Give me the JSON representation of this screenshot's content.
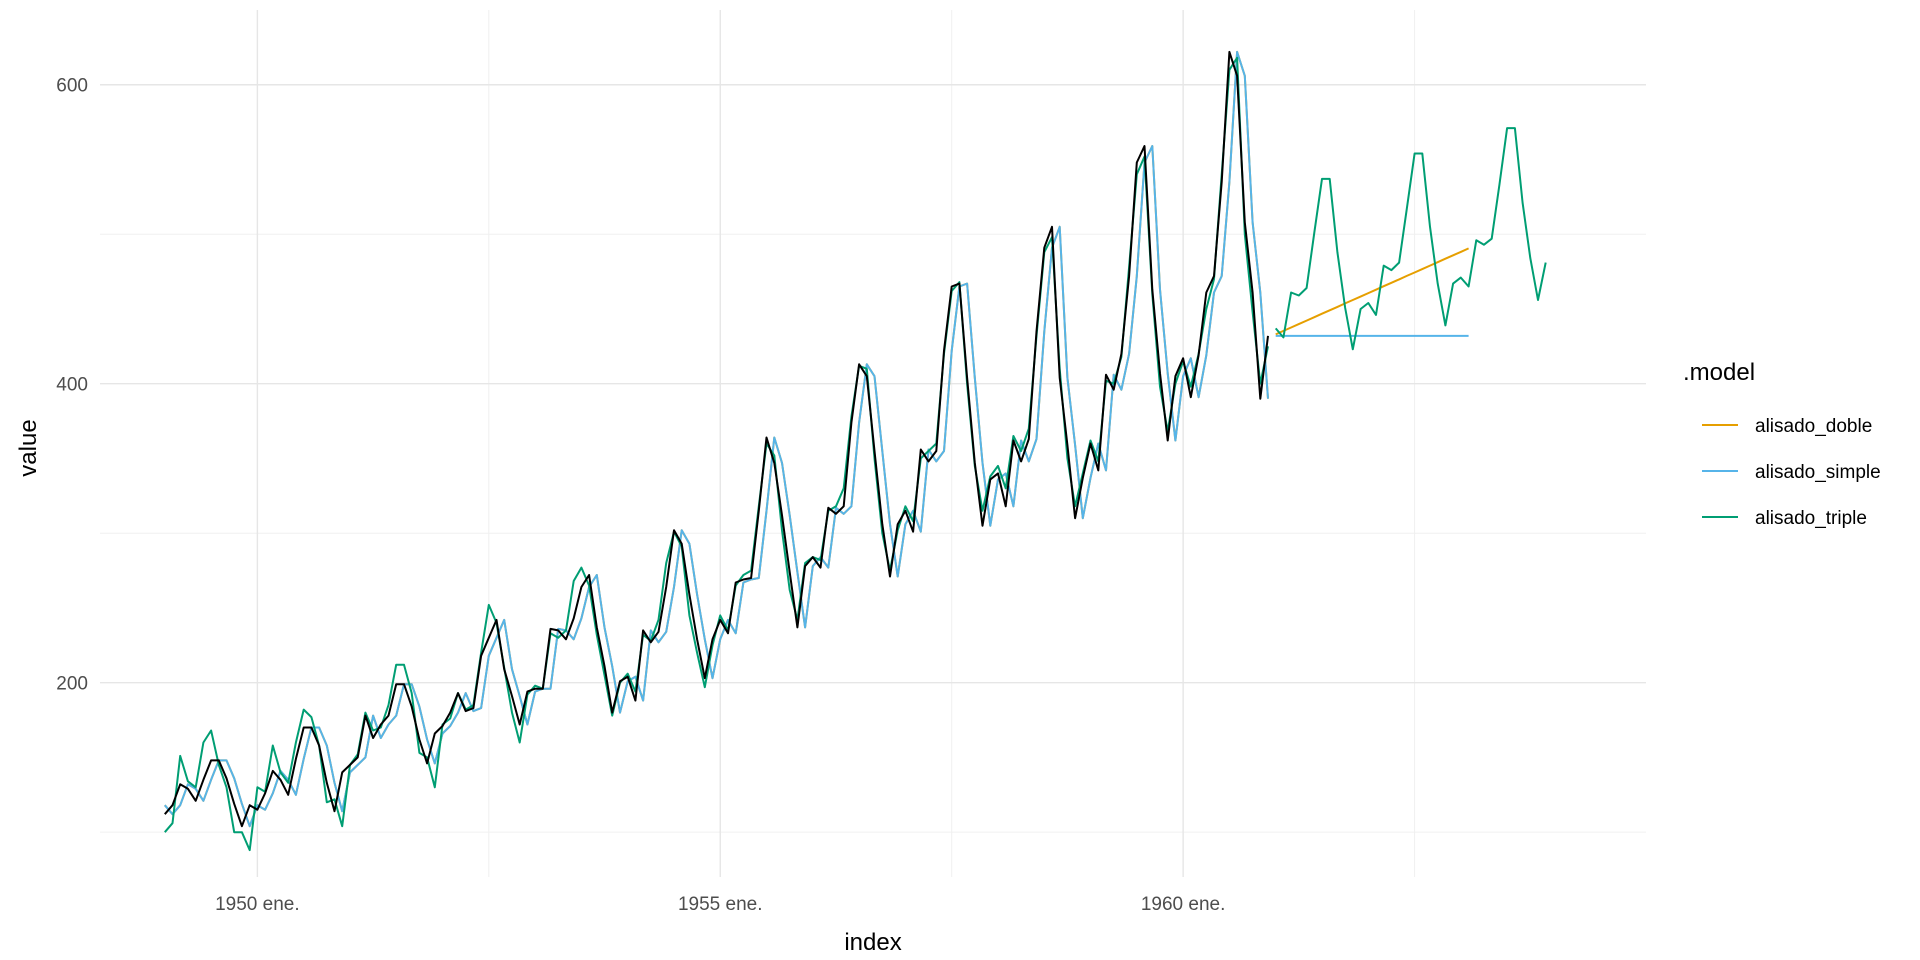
{
  "chart_data": {
    "type": "line",
    "xlabel": "index",
    "ylabel": "value",
    "x_tick_labels": [
      "1950 ene.",
      "1955 ene.",
      "1960 ene."
    ],
    "x_tick_values": [
      1950,
      1955,
      1960
    ],
    "y_tick_values": [
      200,
      400,
      600
    ],
    "xlim": [
      1948.3,
      1965.0
    ],
    "ylim": [
      70,
      650
    ],
    "grid": true,
    "legend_title": ".model",
    "legend_position": "right",
    "observed": {
      "start": 1949.0,
      "step": 0.083333,
      "color": "#000000",
      "values": [
        112,
        118,
        132,
        129,
        121,
        135,
        148,
        148,
        136,
        119,
        104,
        118,
        115,
        126,
        141,
        135,
        125,
        149,
        170,
        170,
        158,
        133,
        114,
        140,
        145,
        150,
        178,
        163,
        172,
        178,
        199,
        199,
        184,
        162,
        146,
        166,
        171,
        180,
        193,
        181,
        183,
        218,
        230,
        242,
        209,
        191,
        172,
        194,
        196,
        196,
        236,
        235,
        229,
        243,
        264,
        272,
        237,
        211,
        180,
        201,
        204,
        188,
        235,
        227,
        234,
        264,
        302,
        293,
        259,
        229,
        203,
        229,
        242,
        233,
        267,
        269,
        270,
        315,
        364,
        347,
        312,
        274,
        237,
        278,
        284,
        277,
        317,
        313,
        318,
        374,
        413,
        405,
        355,
        306,
        271,
        306,
        315,
        301,
        356,
        348,
        355,
        422,
        465,
        467,
        404,
        347,
        305,
        336,
        340,
        318,
        362,
        348,
        363,
        435,
        491,
        505,
        404,
        359,
        310,
        337,
        360,
        342,
        406,
        396,
        420,
        472,
        548,
        559,
        463,
        407,
        362,
        405,
        417,
        391,
        419,
        461,
        472,
        535,
        622,
        606,
        508,
        461,
        390,
        432
      ]
    },
    "series": [
      {
        "name": "alisado_doble",
        "color": "#E69F00",
        "fitted_start": 1949.0,
        "fitted_lag": 1,
        "forecast": {
          "start": 1961.0,
          "step": 0.083333,
          "values": [
            433.0,
            435.3,
            437.6,
            439.9,
            442.2,
            444.5,
            446.8,
            449.1,
            451.4,
            453.7,
            456.0,
            458.3,
            460.6,
            462.9,
            465.2,
            467.5,
            469.8,
            472.1,
            474.4,
            476.7,
            479.0,
            481.3,
            483.6,
            485.9,
            488.2,
            490.5
          ]
        }
      },
      {
        "name": "alisado_simple",
        "color": "#56B4E9",
        "fitted_start": 1949.0,
        "fitted_lag": 1,
        "forecast": {
          "start": 1961.0,
          "step": 0.083333,
          "values": [
            432,
            432,
            432,
            432,
            432,
            432,
            432,
            432,
            432,
            432,
            432,
            432,
            432,
            432,
            432,
            432,
            432,
            432,
            432,
            432,
            432,
            432,
            432,
            432,
            432,
            432
          ]
        }
      },
      {
        "name": "alisado_triple",
        "color": "#009E73",
        "fitted_start": 1949.0,
        "fitted_values": [
          100,
          106,
          151,
          134,
          130,
          160,
          168,
          145,
          130,
          100,
          100,
          88,
          130,
          127,
          158,
          140,
          133,
          160,
          182,
          177,
          158,
          120,
          122,
          104,
          145,
          152,
          180,
          168,
          170,
          185,
          212,
          212,
          193,
          153,
          150,
          130,
          172,
          176,
          193,
          182,
          185,
          220,
          252,
          240,
          210,
          180,
          160,
          192,
          198,
          196,
          233,
          230,
          235,
          268,
          277,
          265,
          232,
          205,
          178,
          200,
          206,
          194,
          232,
          228,
          242,
          280,
          301,
          291,
          245,
          220,
          197,
          225,
          245,
          235,
          265,
          272,
          275,
          318,
          360,
          352,
          302,
          262,
          242,
          280,
          284,
          282,
          315,
          318,
          330,
          378,
          412,
          410,
          350,
          300,
          275,
          302,
          318,
          308,
          350,
          355,
          360,
          420,
          462,
          468,
          400,
          345,
          315,
          338,
          345,
          330,
          365,
          355,
          370,
          432,
          488,
          498,
          410,
          350,
          318,
          340,
          362,
          348,
          402,
          400,
          418,
          478,
          540,
          552,
          460,
          398,
          368,
          400,
          415,
          398,
          420,
          450,
          470,
          540,
          610,
          618,
          500,
          448,
          400,
          425
        ],
        "forecast": {
          "start": 1961.0,
          "step": 0.083333,
          "values": [
            437,
            431,
            461,
            459,
            464,
            501,
            537,
            537,
            488,
            451,
            423,
            450,
            454,
            446,
            479,
            476,
            481,
            517,
            554,
            554,
            505,
            467,
            439,
            467,
            471,
            465,
            496,
            493,
            497,
            533,
            571,
            571,
            521,
            484,
            456,
            481
          ]
        }
      }
    ]
  }
}
